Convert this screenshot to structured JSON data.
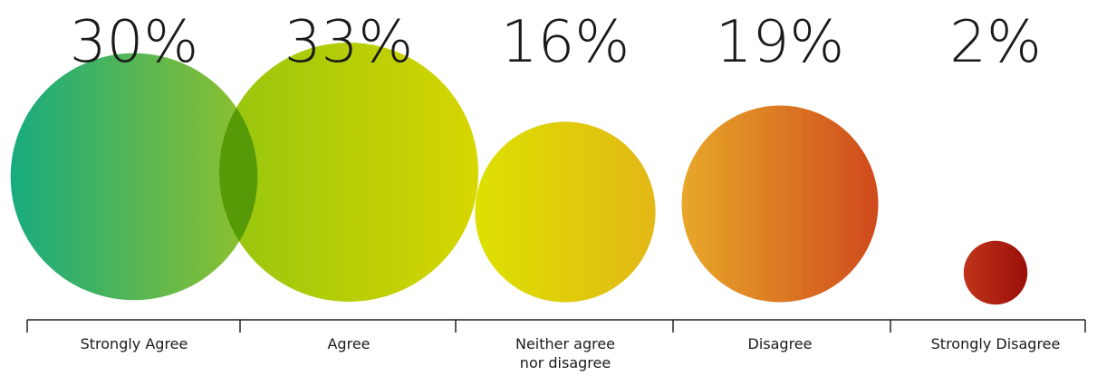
{
  "chart_data": {
    "type": "bubble",
    "title": "",
    "xlabel": "",
    "ylabel": "",
    "grid": false,
    "categories": [
      [
        "Strongly Agree"
      ],
      [
        "Agree"
      ],
      [
        "Neither agree",
        "nor disagree"
      ],
      [
        "Disagree"
      ],
      [
        "Strongly Disagree"
      ]
    ],
    "values": [
      30,
      33,
      16,
      19,
      2
    ],
    "value_labels": [
      "30%",
      "33%",
      "16%",
      "19%",
      "2%"
    ],
    "colors": [
      [
        "#17ab80",
        "#93c12a"
      ],
      [
        "#96c50f",
        "#d7d600"
      ],
      [
        "#dde000",
        "#e2b816"
      ],
      [
        "#e8a82a",
        "#cf4a1c"
      ],
      [
        "#c0341a",
        "#9a1009"
      ]
    ],
    "overlap_colors": [
      "#579a08",
      "#b8cc0c"
    ]
  }
}
